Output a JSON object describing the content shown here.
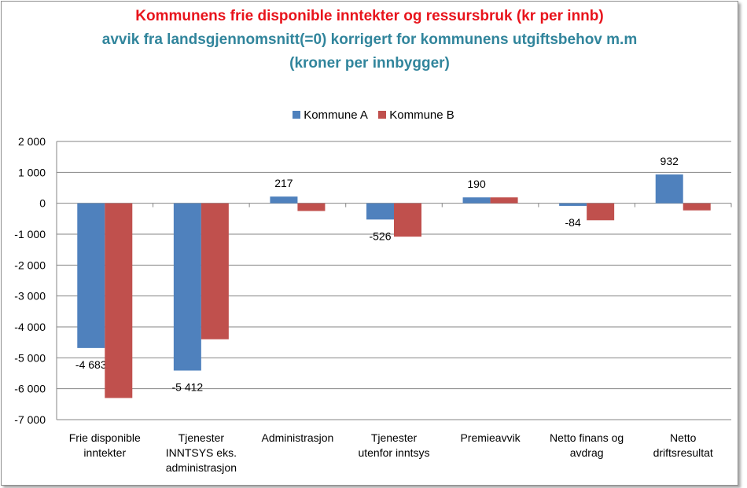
{
  "chart_data": {
    "type": "bar",
    "title": "Kommunens frie disponible inntekter og ressursbruk (kr per innb)",
    "subtitle": [
      "avvik fra landsgjennomsnitt(=0) korrigert for kommunens utgiftsbehov m.m",
      "(kroner per innbygger)"
    ],
    "categories": [
      [
        "Frie disponible",
        "inntekter"
      ],
      [
        "Tjenester",
        "INNTSYS eks.",
        "administrasjon"
      ],
      [
        "Administrasjon"
      ],
      [
        "Tjenester",
        "utenfor inntsys"
      ],
      [
        "Premieavvik"
      ],
      [
        "Netto finans og",
        "avdrag"
      ],
      [
        "Netto",
        "driftsresultat"
      ]
    ],
    "series": [
      {
        "name": "Kommune A",
        "color": "#4f81bd",
        "values": [
          -4683,
          -5412,
          217,
          -526,
          190,
          -84,
          932
        ],
        "labels": [
          "-4 683",
          "-5 412",
          "217",
          "-526",
          "190",
          "-84",
          "932"
        ]
      },
      {
        "name": "Kommune B",
        "color": "#c0504d",
        "values": [
          -6300,
          -4400,
          -250,
          -1080,
          190,
          -550,
          -230
        ]
      }
    ],
    "ylim": [
      -7000,
      2000
    ],
    "yticks": [
      2000,
      1000,
      0,
      -1000,
      -2000,
      -3000,
      -4000,
      -5000,
      -6000,
      -7000
    ],
    "ytick_labels": [
      "2 000",
      "1 000",
      "0",
      "-1 000",
      "-2 000",
      "-3 000",
      "-4 000",
      "-5 000",
      "-6 000",
      "-7 000"
    ],
    "grid": true,
    "legend": "top"
  }
}
